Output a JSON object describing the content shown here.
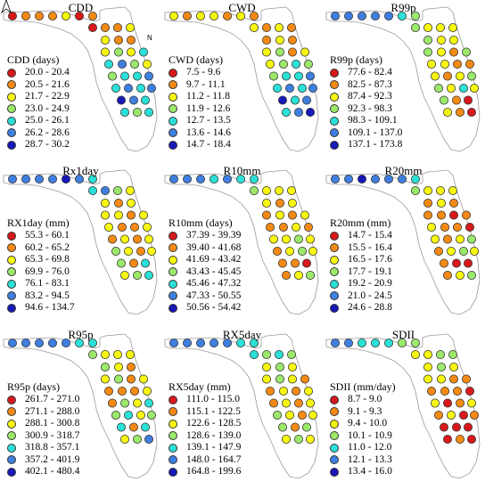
{
  "colors": [
    "#d7191c",
    "#f48a14",
    "#f7f70f",
    "#9be86a",
    "#2be0d6",
    "#3f7fe0",
    "#1818b8"
  ],
  "north_label": "N",
  "panels": [
    {
      "title": "CDD",
      "legend_title": "CDD (days)",
      "ranges": [
        "20.0 - 20.4",
        "20.5 - 21.6",
        "21.7 - 22.9",
        "23.0 - 24.9",
        "25.0 - 26.1",
        "26.2 - 28.6",
        "28.7 - 30.2"
      ],
      "stations": [
        0,
        1,
        1,
        1,
        2,
        0,
        1,
        0,
        1,
        1,
        2,
        2,
        1,
        1,
        2,
        3,
        2,
        4,
        4,
        5,
        3,
        2,
        3,
        4,
        4,
        5,
        4,
        5,
        4,
        5,
        6,
        5,
        4,
        4,
        3,
        4
      ]
    },
    {
      "title": "CWD",
      "legend_title": "CWD (days)",
      "ranges": [
        "7.5 - 9.6",
        "9.7 - 11.1",
        "11.2 - 11.8",
        "11.9 - 12.6",
        "12.7 - 13.5",
        "13.6 - 14.6",
        "14.7 - 18.4"
      ],
      "stations": [
        2,
        1,
        2,
        2,
        1,
        2,
        1,
        2,
        1,
        2,
        1,
        1,
        2,
        1,
        2,
        3,
        1,
        2,
        2,
        3,
        4,
        3,
        3,
        4,
        4,
        5,
        4,
        5,
        4,
        5,
        6,
        4,
        5,
        4,
        5,
        6
      ]
    },
    {
      "title": "R99p",
      "legend_title": "R99p (days)",
      "ranges": [
        "77.6 - 82.4",
        "82.5 - 87.3",
        "87.4 - 92.3",
        "92.3 - 98.3",
        "98.3 - 109.1",
        "109.1 - 137.0",
        "137.1 - 173.8"
      ],
      "stations": [
        5,
        5,
        5,
        5,
        5,
        4,
        3,
        3,
        2,
        2,
        2,
        3,
        2,
        2,
        3,
        2,
        1,
        3,
        2,
        2,
        1,
        1,
        2,
        1,
        2,
        3,
        3,
        2,
        4,
        2,
        3,
        1,
        0,
        2,
        1,
        0
      ]
    },
    {
      "title": "Rx1day",
      "legend_title": "RX1day (mm)",
      "ranges": [
        "55.3 - 60.1",
        "60.2 - 65.2",
        "65.3 - 69.8",
        "69.9 - 76.0",
        "76.1 - 83.1",
        "83.2 - 94.5",
        "94.6 - 134.7"
      ],
      "stations": [
        5,
        5,
        5,
        5,
        6,
        5,
        4,
        4,
        5,
        3,
        2,
        2,
        1,
        2,
        2,
        2,
        1,
        2,
        2,
        1,
        1,
        2,
        1,
        2,
        1,
        2,
        3,
        2,
        1,
        2,
        3,
        1,
        4,
        2,
        3,
        4
      ]
    },
    {
      "title": "R10mm",
      "legend_title": "R10mm (days)",
      "ranges": [
        "37.39 - 39.39",
        "39.40 - 41.68",
        "41.69 - 43.42",
        "43.43 - 45.45",
        "45.46 - 47.32",
        "47.33 - 50.55",
        "50.56 - 54.42"
      ],
      "stations": [
        5,
        5,
        5,
        4,
        5,
        4,
        4,
        3,
        2,
        2,
        2,
        2,
        1,
        2,
        1,
        2,
        1,
        2,
        1,
        1,
        2,
        1,
        2,
        2,
        3,
        2,
        1,
        2,
        3,
        2,
        1,
        1,
        0,
        1,
        2,
        3
      ]
    },
    {
      "title": "R20mm",
      "legend_title": "R20mm (mm)",
      "ranges": [
        "14.7 - 15.4",
        "15.5 - 16.4",
        "16.5 - 17.6",
        "17.7 - 19.1",
        "19.2 - 20.9",
        "21.0 - 24.5",
        "24.6 - 28.8"
      ],
      "stations": [
        5,
        5,
        6,
        5,
        5,
        5,
        4,
        3,
        2,
        2,
        2,
        1,
        2,
        1,
        1,
        1,
        0,
        1,
        2,
        1,
        1,
        0,
        2,
        1,
        2,
        3,
        1,
        2,
        3,
        2,
        1,
        0,
        0,
        1,
        2,
        3
      ]
    },
    {
      "title": "R95p",
      "legend_title": "R95p (days)",
      "ranges": [
        "261.7 - 271.0",
        "271.1 - 288.0",
        "288.1 - 300.8",
        "300.9 - 318.7",
        "318.8 - 357.1",
        "357.2 - 401.9",
        "402.1 - 480.4"
      ],
      "stations": [
        5,
        5,
        5,
        5,
        5,
        4,
        4,
        3,
        2,
        2,
        2,
        3,
        2,
        1,
        2,
        3,
        1,
        2,
        1,
        1,
        1,
        2,
        1,
        3,
        2,
        4,
        3,
        4,
        2,
        3,
        4,
        1,
        4,
        2,
        3,
        5
      ]
    },
    {
      "title": "RX5day",
      "legend_title": "RX5day (mm)",
      "ranges": [
        "111.0 - 115.0",
        "115.1 - 122.5",
        "122.6 - 128.5",
        "128.6 - 139.0",
        "139.1 - 147.9",
        "148.0 - 164.7",
        "164.8 - 199.6"
      ],
      "stations": [
        5,
        5,
        5,
        5,
        5,
        4,
        4,
        4,
        3,
        4,
        3,
        2,
        3,
        2,
        2,
        3,
        2,
        1,
        1,
        2,
        1,
        2,
        1,
        2,
        1,
        2,
        3,
        2,
        1,
        2,
        3,
        1,
        3,
        2,
        3,
        2
      ]
    },
    {
      "title": "SDII",
      "legend_title": "SDII (mm/day)",
      "ranges": [
        "8.7 - 9.0",
        "9.1 - 9.3",
        "9.4 - 10.0",
        "10.1 - 10.9",
        "11.0 - 12.0",
        "12.1 - 13.3",
        "13.4 - 16.0"
      ],
      "stations": [
        5,
        5,
        4,
        4,
        4,
        3,
        3,
        2,
        2,
        3,
        3,
        2,
        3,
        2,
        2,
        2,
        1,
        1,
        1,
        1,
        1,
        0,
        2,
        0,
        1,
        2,
        1,
        2,
        0,
        1,
        0,
        0,
        0,
        0,
        1,
        0
      ]
    }
  ]
}
